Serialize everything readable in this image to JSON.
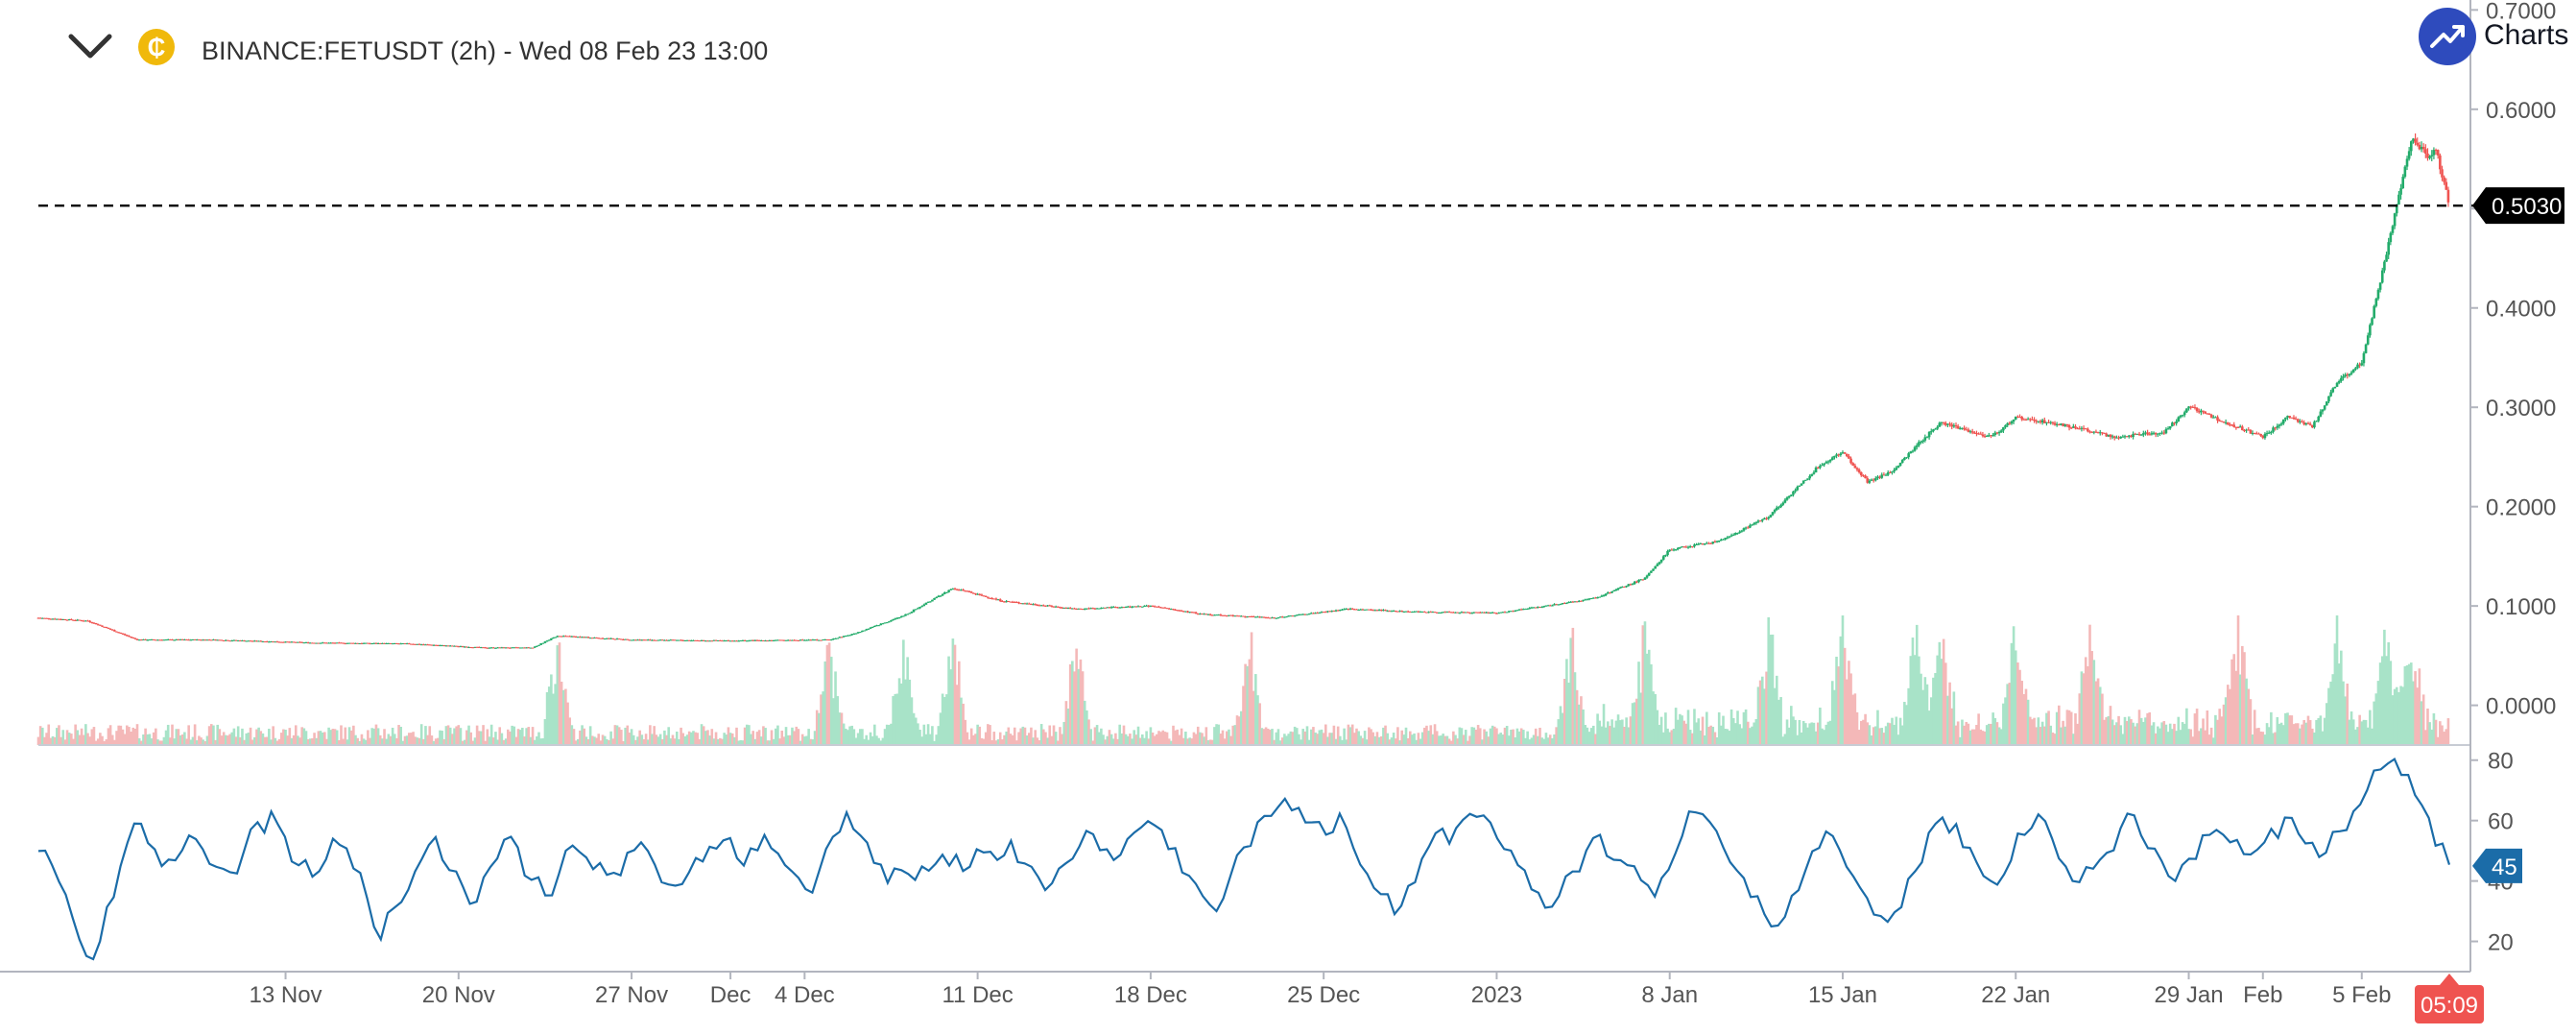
{
  "header": {
    "collapse_icon": "chevron-down-icon",
    "coin_icon": "coin-icon",
    "coin_symbol": "₵",
    "title": "BINANCE:FETUSDT (2h) - Wed 08 Feb 23 13:00",
    "brand_icon": "trend-up-icon",
    "brand_text": "Charts p"
  },
  "colors": {
    "up": "#26a69a",
    "up_body": "#22ab6a",
    "down": "#ef5350",
    "up_volume": "#a8e3c8",
    "down_volume": "#f4b8b8",
    "rsi_line": "#1b6ca8",
    "price_label_bg": "#000000",
    "rsi_label_bg": "#1b6ca8",
    "countdown_bg": "#ef5350",
    "axis": "#555555"
  },
  "chart_data": [
    {
      "type": "candlestick",
      "ylim": [
        -0.04,
        0.71
      ],
      "y_ticks": [
        "0.7000",
        "0.6000",
        "0.5000",
        "0.4000",
        "0.3000",
        "0.2000",
        "0.1000",
        "0.0000"
      ],
      "y_tick_values": [
        0.7,
        0.6,
        0.5,
        0.4,
        0.3,
        0.2,
        0.1,
        0.0
      ],
      "last_price": 0.503,
      "last_price_label": "0.5030",
      "countdown": "05:09",
      "x_tick_labels": [
        "13 Nov",
        "20 Nov",
        "27 Nov",
        "Dec",
        "4 Dec",
        "11 Dec",
        "18 Dec",
        "25 Dec",
        "2023",
        "8 Jan",
        "15 Jan",
        "22 Jan",
        "29 Jan",
        "Feb",
        "5 Feb"
      ],
      "x_tick_dates": [
        "2022-11-13",
        "2022-11-20",
        "2022-11-27",
        "2022-12-01",
        "2022-12-04",
        "2022-12-11",
        "2022-12-18",
        "2022-12-25",
        "2023-01-01",
        "2023-01-08",
        "2023-01-15",
        "2023-01-22",
        "2023-01-29",
        "2023-02-01",
        "2023-02-05"
      ],
      "x_start": "2022-11-03",
      "x_end": "2023-02-08 13:00",
      "price_path": [
        [
          "2022-11-03",
          0.088
        ],
        [
          "2022-11-05",
          0.085
        ],
        [
          "2022-11-07",
          0.066
        ],
        [
          "2022-11-10",
          0.066
        ],
        [
          "2022-11-14",
          0.063
        ],
        [
          "2022-11-18",
          0.062
        ],
        [
          "2022-11-21",
          0.058
        ],
        [
          "2022-11-23",
          0.058
        ],
        [
          "2022-11-24",
          0.07
        ],
        [
          "2022-11-27",
          0.066
        ],
        [
          "2022-12-01",
          0.065
        ],
        [
          "2022-12-05",
          0.066
        ],
        [
          "2022-12-06",
          0.072
        ],
        [
          "2022-12-08",
          0.09
        ],
        [
          "2022-12-10",
          0.118
        ],
        [
          "2022-12-12",
          0.105
        ],
        [
          "2022-12-15",
          0.097
        ],
        [
          "2022-12-18",
          0.1
        ],
        [
          "2022-12-20",
          0.092
        ],
        [
          "2022-12-23",
          0.088
        ],
        [
          "2022-12-26",
          0.097
        ],
        [
          "2022-12-29",
          0.094
        ],
        [
          "2023-01-01",
          0.093
        ],
        [
          "2023-01-03",
          0.1
        ],
        [
          "2023-01-05",
          0.108
        ],
        [
          "2023-01-07",
          0.128
        ],
        [
          "2023-01-08",
          0.157
        ],
        [
          "2023-01-10",
          0.165
        ],
        [
          "2023-01-12",
          0.19
        ],
        [
          "2023-01-14",
          0.24
        ],
        [
          "2023-01-15",
          0.255
        ],
        [
          "2023-01-16",
          0.225
        ],
        [
          "2023-01-17",
          0.235
        ],
        [
          "2023-01-18",
          0.262
        ],
        [
          "2023-01-19",
          0.285
        ],
        [
          "2023-01-21",
          0.27
        ],
        [
          "2023-01-22",
          0.29
        ],
        [
          "2023-01-24",
          0.282
        ],
        [
          "2023-01-26",
          0.27
        ],
        [
          "2023-01-28",
          0.275
        ],
        [
          "2023-01-29",
          0.3
        ],
        [
          "2023-01-30",
          0.29
        ],
        [
          "2023-01-31",
          0.28
        ],
        [
          "2023-02-01",
          0.27
        ],
        [
          "2023-02-02",
          0.29
        ],
        [
          "2023-02-03",
          0.28
        ],
        [
          "2023-02-04",
          0.325
        ],
        [
          "2023-02-05",
          0.345
        ],
        [
          "2023-02-06",
          0.455
        ],
        [
          "2023-02-07",
          0.57
        ],
        [
          "2023-02-07 18:00",
          0.55
        ],
        [
          "2023-02-08",
          0.56
        ],
        [
          "2023-02-08 13:00",
          0.503
        ]
      ],
      "volume_spikes": [
        "2022-11-24",
        "2022-12-05",
        "2022-12-08",
        "2022-12-10",
        "2022-12-15",
        "2022-12-22",
        "2023-01-04",
        "2023-01-07",
        "2023-01-12",
        "2023-01-15",
        "2023-01-18",
        "2023-01-19",
        "2023-01-22",
        "2023-01-25",
        "2023-01-31",
        "2023-02-04",
        "2023-02-06",
        "2023-02-07"
      ]
    },
    {
      "type": "line",
      "name": "",
      "ylim": [
        10,
        85
      ],
      "y_ticks": [
        "80",
        "60",
        "40",
        "20"
      ],
      "y_tick_values": [
        80,
        60,
        40,
        20
      ],
      "last_value": 45,
      "last_value_label": "45",
      "values": [
        50,
        44,
        34,
        20,
        15,
        30,
        45,
        58,
        52,
        46,
        48,
        55,
        52,
        45,
        42,
        50,
        58,
        62,
        54,
        46,
        40,
        48,
        52,
        44,
        35,
        22,
        30,
        38,
        48,
        55,
        44,
        38,
        34,
        46,
        55,
        50,
        40,
        36,
        42,
        52,
        48,
        45,
        42,
        48,
        52,
        44,
        40,
        38,
        48,
        52,
        54,
        48,
        50,
        55,
        50,
        42,
        36,
        44,
        56,
        62,
        54,
        46,
        40,
        44,
        40,
        42,
        50,
        48,
        46,
        50,
        48,
        52,
        46,
        42,
        38,
        45,
        52,
        56,
        50,
        48,
        56,
        60,
        56,
        50,
        42,
        34,
        30,
        40,
        52,
        58,
        62,
        68,
        64,
        58,
        56,
        62,
        52,
        42,
        36,
        30,
        38,
        48,
        56,
        52,
        60,
        62,
        58,
        50,
        44,
        36,
        30,
        34,
        42,
        50,
        56,
        48,
        44,
        40,
        36,
        44,
        56,
        64,
        60,
        52,
        44,
        36,
        30,
        26,
        34,
        44,
        52,
        56,
        46,
        38,
        30,
        26,
        32,
        44,
        56,
        62,
        58,
        50,
        42,
        40,
        48,
        56,
        62,
        54,
        46,
        40,
        44,
        50,
        56,
        62,
        52,
        46,
        40,
        46,
        54,
        58,
        54,
        48,
        50,
        56,
        60,
        56,
        52,
        50,
        56,
        62,
        70,
        76,
        80,
        74,
        66,
        52,
        45
      ]
    }
  ]
}
